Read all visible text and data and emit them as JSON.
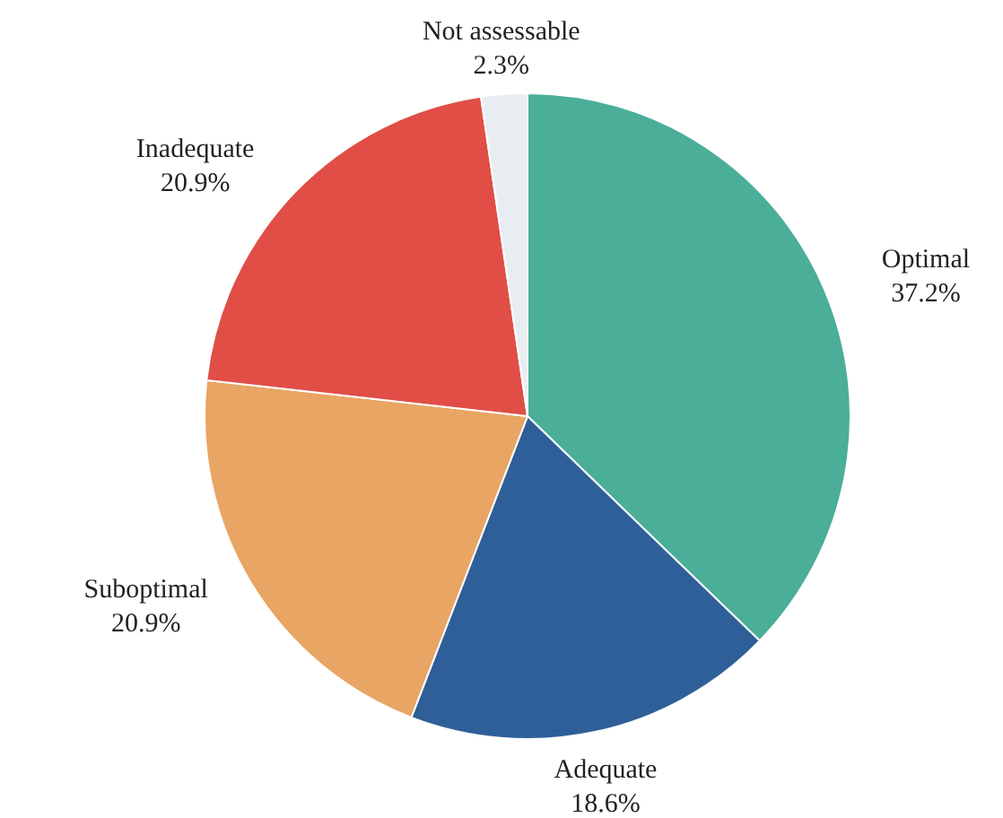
{
  "chart_data": {
    "type": "pie",
    "categories": [
      "Optimal",
      "Adequate",
      "Suboptimal",
      "Inadequate",
      "Not assessable"
    ],
    "values": [
      37.2,
      18.6,
      20.9,
      20.9,
      2.3
    ],
    "value_labels": [
      "37.2%",
      "18.6%",
      "20.9%",
      "20.9%",
      "2.3%"
    ],
    "colors": [
      "#4aae99",
      "#2f5f98",
      "#e8a563",
      "#e04e46",
      "#e8edf2"
    ]
  }
}
